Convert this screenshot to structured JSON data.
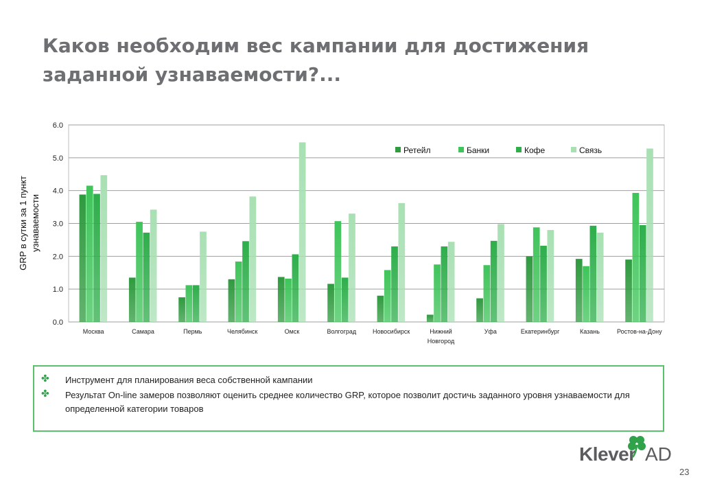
{
  "title": {
    "line1": "Каков необходим вес  кампании для достижения",
    "line2": "заданной узнаваемости?..."
  },
  "chart_data": {
    "type": "bar",
    "ylabel_lines": [
      "GRP в сутки за 1 пункт",
      "узнаваемости"
    ],
    "ylim": [
      0,
      6
    ],
    "y_ticks": [
      "0.0",
      "1.0",
      "2.0",
      "3.0",
      "4.0",
      "5.0",
      "6.0"
    ],
    "grid": true,
    "legend_position": "top-right",
    "categories": [
      "Москва",
      "Самара",
      "Пермь",
      "Челябинск",
      "Омск",
      "Волгоград",
      "Новосибирск",
      "Нижний Новгород",
      "Уфа",
      "Екатеринбург",
      "Казань",
      "Ростов-на-Дону"
    ],
    "category_label_lines": [
      [
        "Москва"
      ],
      [
        "Самара"
      ],
      [
        "Пермь"
      ],
      [
        "Челябинск"
      ],
      [
        "Омск"
      ],
      [
        "Волгоград"
      ],
      [
        "Новосибирск"
      ],
      [
        "Нижний",
        "Новгород"
      ],
      [
        "Уфа"
      ],
      [
        "Екатеринбург"
      ],
      [
        "Казань"
      ],
      [
        "Ростов-на-Дону"
      ]
    ],
    "series": [
      {
        "name": "Ретейл",
        "color": "#2f9a3f",
        "values": [
          3.88,
          1.35,
          0.75,
          1.3,
          1.37,
          1.16,
          0.8,
          0.22,
          0.72,
          2.0,
          1.92,
          1.9
        ]
      },
      {
        "name": "Банки",
        "color": "#3fc45a",
        "values": [
          4.15,
          3.05,
          1.12,
          1.84,
          1.32,
          3.07,
          1.58,
          1.75,
          1.73,
          2.88,
          1.7,
          3.93
        ]
      },
      {
        "name": "Кофе",
        "color": "#2eae4b",
        "values": [
          3.9,
          2.72,
          1.12,
          2.46,
          2.06,
          1.35,
          2.3,
          2.3,
          2.47,
          2.32,
          2.93,
          2.95
        ]
      },
      {
        "name": "Связь",
        "color": "#a8e0b3",
        "values": [
          4.47,
          3.42,
          2.75,
          3.82,
          5.47,
          3.3,
          3.62,
          2.44,
          2.98,
          2.8,
          2.72,
          5.28
        ]
      }
    ]
  },
  "bullets": [
    "Инструмент для планирования веса собственной кампании",
    "Результат On-line замеров позволяют оценить среднее количество GRP, которое позволит достичь заданного уровня узнаваемости для определенной категории товаров"
  ],
  "logo": {
    "brand": "Klever",
    "suffix": "AD"
  },
  "page_number": "23"
}
